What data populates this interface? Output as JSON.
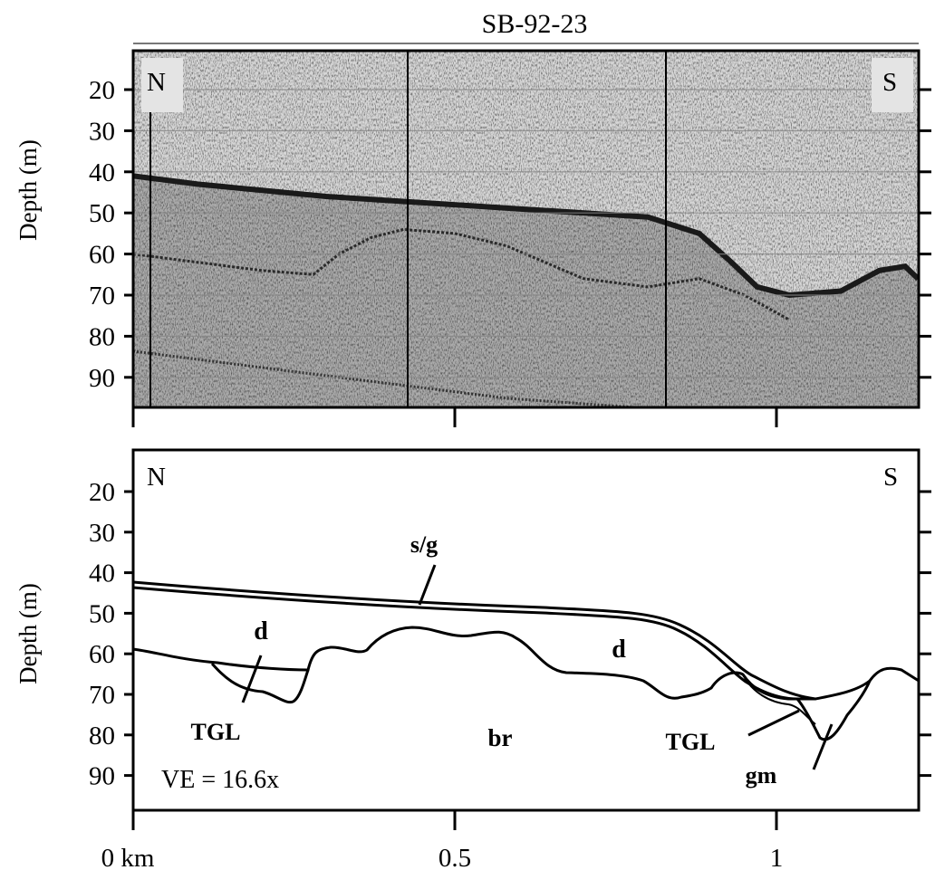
{
  "title": "SB-92-23",
  "colors": {
    "ink": "#000000",
    "record_background": "#d7d7d7",
    "record_noise": "#4a4a4a",
    "panel_background": "#ffffff"
  },
  "top_panel": {
    "north_label": "N",
    "south_label": "S",
    "ylabel": "Depth (m)",
    "yticks": [
      "20",
      "30",
      "40",
      "50",
      "60",
      "70",
      "80",
      "90"
    ],
    "seafloor_profile": [
      [
        0,
        41
      ],
      [
        0.1,
        43
      ],
      [
        0.3,
        46
      ],
      [
        0.6,
        49
      ],
      [
        0.8,
        51
      ],
      [
        0.88,
        55
      ],
      [
        0.93,
        62
      ],
      [
        0.97,
        68
      ],
      [
        1.02,
        70
      ],
      [
        1.1,
        69
      ],
      [
        1.16,
        64
      ],
      [
        1.2,
        63
      ],
      [
        1.22,
        66
      ]
    ],
    "bedrock_profile": [
      [
        0,
        60
      ],
      [
        0.1,
        62
      ],
      [
        0.2,
        64
      ],
      [
        0.28,
        65
      ],
      [
        0.32,
        60
      ],
      [
        0.37,
        56
      ],
      [
        0.42,
        54
      ],
      [
        0.5,
        55
      ],
      [
        0.58,
        58
      ],
      [
        0.7,
        66
      ],
      [
        0.8,
        68
      ],
      [
        0.88,
        66
      ],
      [
        0.95,
        70
      ],
      [
        1.02,
        76
      ]
    ]
  },
  "bottom_panel": {
    "north_label": "N",
    "south_label": "S",
    "ylabel": "Depth (m)",
    "yticks": [
      "20",
      "30",
      "40",
      "50",
      "60",
      "70",
      "80",
      "90"
    ],
    "ve_label": "VE = 16.6x",
    "unit_labels": {
      "sg": "s/g",
      "d_left": "d",
      "d_right": "d",
      "tgl_left": "TGL",
      "tgl_right": "TGL",
      "br": "br",
      "gm": "gm"
    }
  },
  "xaxis": {
    "ticks": [
      "0 km",
      "0.5",
      "1"
    ],
    "tick_values": [
      0,
      0.5,
      1
    ]
  }
}
